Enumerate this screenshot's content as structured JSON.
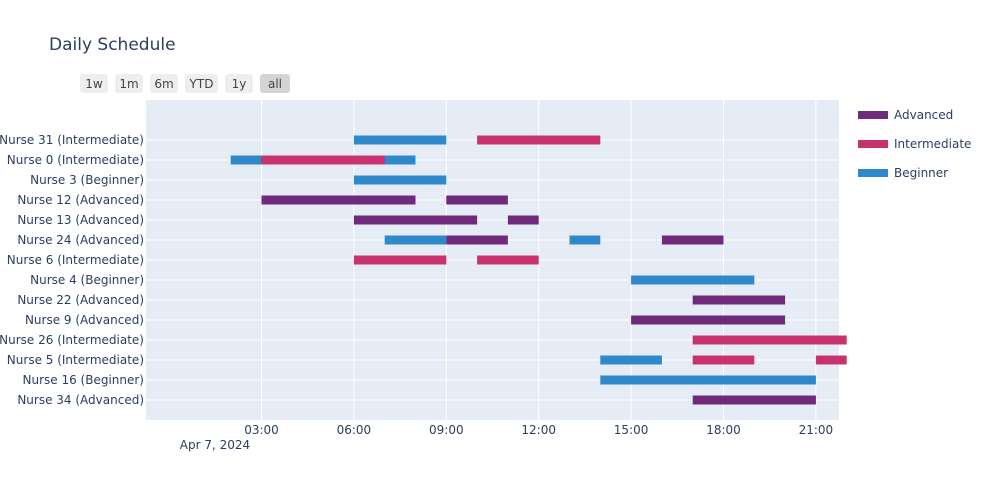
{
  "chart_data": {
    "type": "timeline",
    "title": "Daily Schedule",
    "date_label": "Apr 7, 2024",
    "x_range_hours": [
      -0.75,
      21.75
    ],
    "x_ticks": [
      {
        "hour": 3,
        "label": "03:00"
      },
      {
        "hour": 6,
        "label": "06:00"
      },
      {
        "hour": 9,
        "label": "09:00"
      },
      {
        "hour": 12,
        "label": "12:00"
      },
      {
        "hour": 15,
        "label": "15:00"
      },
      {
        "hour": 18,
        "label": "18:00"
      },
      {
        "hour": 21,
        "label": "21:00"
      }
    ],
    "range_buttons": [
      {
        "label": "1w",
        "active": false
      },
      {
        "label": "1m",
        "active": false
      },
      {
        "label": "6m",
        "active": false
      },
      {
        "label": "YTD",
        "active": false
      },
      {
        "label": "1y",
        "active": false
      },
      {
        "label": "all",
        "active": true
      }
    ],
    "legend": [
      {
        "name": "Advanced",
        "color": "#6f2a7b"
      },
      {
        "name": "Intermediate",
        "color": "#c8336e"
      },
      {
        "name": "Beginner",
        "color": "#2f88c9"
      }
    ],
    "nurses": [
      "Nurse 31 (Intermediate)",
      "Nurse 0 (Intermediate)",
      "Nurse 3 (Beginner)",
      "Nurse 12 (Advanced)",
      "Nurse 13 (Advanced)",
      "Nurse 24 (Advanced)",
      "Nurse 6 (Intermediate)",
      "Nurse 4 (Beginner)",
      "Nurse 22 (Advanced)",
      "Nurse 9 (Advanced)",
      "Nurse 26 (Intermediate)",
      "Nurse 5 (Intermediate)",
      "Nurse 16 (Beginner)",
      "Nurse 34 (Advanced)"
    ],
    "shifts": [
      {
        "row": 0,
        "level": "Beginner",
        "start": 6,
        "end": 9
      },
      {
        "row": 0,
        "level": "Intermediate",
        "start": 10,
        "end": 14
      },
      {
        "row": 1,
        "level": "Beginner",
        "start": 2,
        "end": 8
      },
      {
        "row": 1,
        "level": "Intermediate",
        "start": 3,
        "end": 7
      },
      {
        "row": 2,
        "level": "Beginner",
        "start": 6,
        "end": 9
      },
      {
        "row": 3,
        "level": "Advanced",
        "start": 3,
        "end": 8
      },
      {
        "row": 3,
        "level": "Advanced",
        "start": 9,
        "end": 11
      },
      {
        "row": 4,
        "level": "Advanced",
        "start": 6,
        "end": 10
      },
      {
        "row": 4,
        "level": "Advanced",
        "start": 11,
        "end": 12
      },
      {
        "row": 5,
        "level": "Beginner",
        "start": 7,
        "end": 9
      },
      {
        "row": 5,
        "level": "Advanced",
        "start": 9,
        "end": 11
      },
      {
        "row": 5,
        "level": "Beginner",
        "start": 13,
        "end": 14
      },
      {
        "row": 5,
        "level": "Advanced",
        "start": 16,
        "end": 18
      },
      {
        "row": 6,
        "level": "Intermediate",
        "start": 6,
        "end": 9
      },
      {
        "row": 6,
        "level": "Intermediate",
        "start": 10,
        "end": 12
      },
      {
        "row": 7,
        "level": "Beginner",
        "start": 15,
        "end": 19
      },
      {
        "row": 8,
        "level": "Advanced",
        "start": 17,
        "end": 20
      },
      {
        "row": 9,
        "level": "Advanced",
        "start": 15,
        "end": 20
      },
      {
        "row": 10,
        "level": "Intermediate",
        "start": 17,
        "end": 22
      },
      {
        "row": 11,
        "level": "Beginner",
        "start": 14,
        "end": 16
      },
      {
        "row": 11,
        "level": "Intermediate",
        "start": 17,
        "end": 19
      },
      {
        "row": 11,
        "level": "Intermediate",
        "start": 21,
        "end": 22
      },
      {
        "row": 12,
        "level": "Beginner",
        "start": 14,
        "end": 21
      },
      {
        "row": 13,
        "level": "Advanced",
        "start": 17,
        "end": 21
      }
    ]
  }
}
